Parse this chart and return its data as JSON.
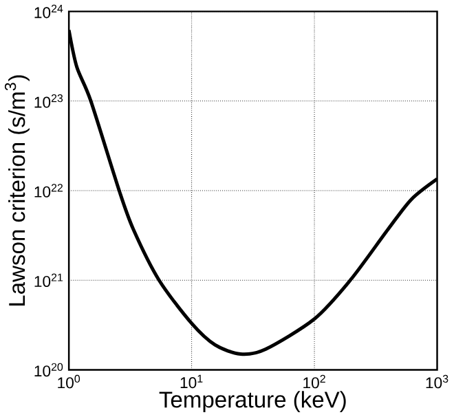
{
  "chart_data": {
    "type": "line",
    "xlabel": "Temperature (keV)",
    "ylabel": "Lawson criterion (s/m$^{3}$)",
    "log": "xy",
    "grid": true,
    "marker": "none",
    "line_style": "solid",
    "x": [
      1.0,
      1.16,
      1.51,
      2.57,
      3.35,
      5.43,
      10,
      15.5,
      25,
      40,
      100,
      196,
      398,
      617,
      1000
    ],
    "series": [
      {
        "color": "#000000",
        "values": [
          6.2e+23,
          2.4e+23,
          1e+23,
          1e+22,
          3.7e+21,
          1e+21,
          3.3e+20,
          1.9e+20,
          1.5e+20,
          1.7e+20,
          3.7e+20,
          1e+21,
          3.7e+21,
          8e+21,
          1.35e+22
        ]
      }
    ],
    "xlim": [
      1,
      1000
    ],
    "ylim": [
      1e+20,
      1e+24
    ],
    "xticks": [
      {
        "value": 1,
        "label": "10$^{0}$"
      },
      {
        "value": 10,
        "label": "10$^{1}$"
      },
      {
        "value": 100,
        "label": "10$^{2}$"
      },
      {
        "value": 1000,
        "label": "10$^{3}$"
      }
    ],
    "yticks": [
      {
        "value": 1e+20,
        "label": "10$^{20}$"
      },
      {
        "value": 1e+21,
        "label": "10$^{21}$"
      },
      {
        "value": 1e+22,
        "label": "10$^{22}$"
      },
      {
        "value": 1e+23,
        "label": "10$^{23}$"
      },
      {
        "value": 1e+24,
        "label": "10$^{24}$"
      }
    ]
  }
}
